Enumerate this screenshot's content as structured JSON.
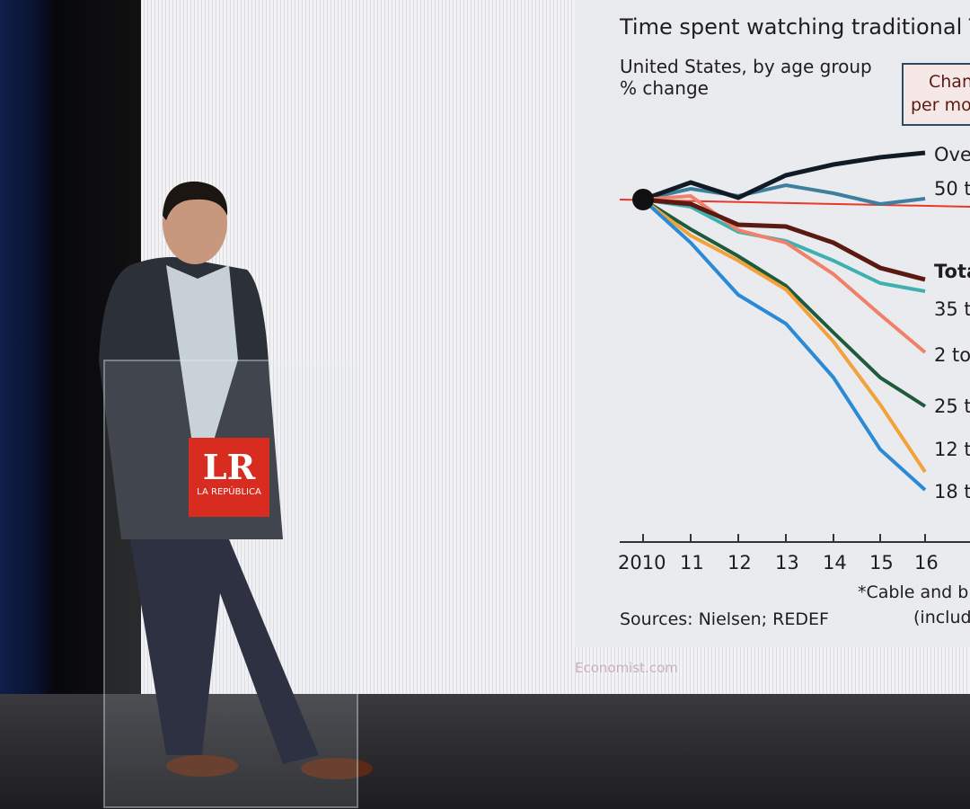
{
  "chart_data": {
    "type": "line",
    "title": "Time spent watching traditional TV",
    "subtitle": "United States, by age group",
    "ylabel": "% change",
    "categories": [
      "2010",
      "11",
      "12",
      "13",
      "14",
      "15",
      "16"
    ],
    "series_labels": [
      "Ove",
      "50 t",
      "Tota",
      "35 t",
      "2 to",
      "25 t",
      "12 t",
      "18 t"
    ],
    "colors": {
      "Ove": "#111b26",
      "50 t": "#3d7f9c",
      "Tota": "#5a1a12",
      "35 t": "#3fb0b0",
      "2 to": "#f0806a",
      "25 t": "#1f5a3c",
      "12 t": "#f2a23a",
      "18 t": "#2a8ad6"
    },
    "legend_box": [
      "Chan",
      "per mo"
    ],
    "footnote": [
      "*Cable and br",
      "(includ"
    ],
    "source": "Sources: Nielsen; REDEF",
    "watermark": "Economist.com"
  },
  "logo": {
    "big": "LR",
    "small": "LA REPÚBLICA"
  }
}
